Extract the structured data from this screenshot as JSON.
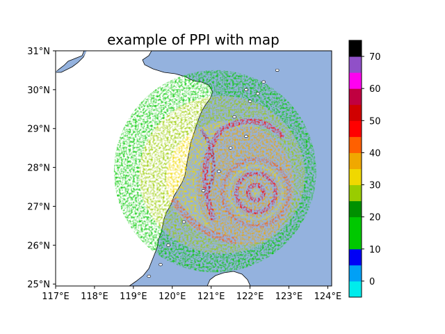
{
  "chart_data": {
    "type": "heatmap",
    "title": "example of PPI with map",
    "x_ticks": [
      "117°E",
      "118°E",
      "119°E",
      "120°E",
      "121°E",
      "122°E",
      "123°E",
      "124°E"
    ],
    "y_ticks": [
      "25°N",
      "26°N",
      "27°N",
      "28°N",
      "29°N",
      "30°N",
      "31°N"
    ],
    "xlim": [
      117,
      124.1
    ],
    "ylim": [
      24.95,
      31.0
    ],
    "x_tick_values": [
      117,
      118,
      119,
      120,
      121,
      122,
      123,
      124
    ],
    "y_tick_values": [
      25,
      26,
      27,
      28,
      29,
      30,
      31
    ],
    "radar_center": [
      121.1,
      27.9
    ],
    "radar_range_deg": 2.6,
    "typhoon_eye": [
      122.15,
      27.35
    ],
    "colorbar": {
      "ticks": [
        "0",
        "10",
        "20",
        "30",
        "40",
        "50",
        "60",
        "70"
      ],
      "tick_values": [
        0,
        10,
        20,
        30,
        40,
        50,
        60,
        70
      ],
      "range": [
        -5,
        75
      ],
      "colors": [
        "#00ecec",
        "#01a0f6",
        "#0000f6",
        "#00c800",
        "#00c800",
        "#009000",
        "#99cc00",
        "#f0d800",
        "#f0a800",
        "#ff6000",
        "#ff0000",
        "#d00000",
        "#c00040",
        "#ff00f0",
        "#9050c8",
        "#000000"
      ]
    },
    "colors": {
      "ocean": "#94b2de",
      "land": "#ffffff",
      "coastline": "#000000",
      "river": "#94b2de"
    }
  }
}
